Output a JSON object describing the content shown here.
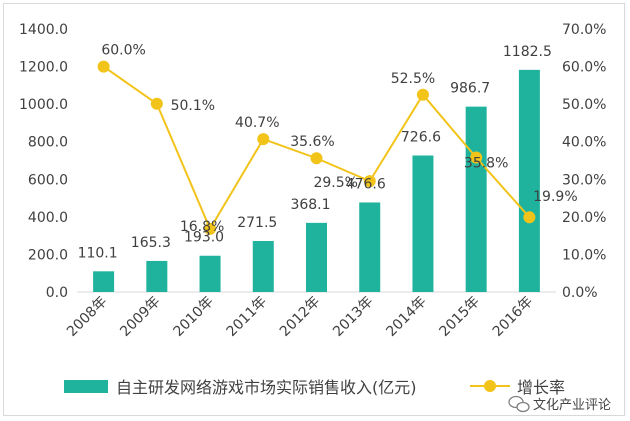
{
  "chart_data": {
    "type": "bar",
    "categories": [
      "2008年",
      "2009年",
      "2010年",
      "2011年",
      "2012年",
      "2013年",
      "2014年",
      "2015年",
      "2016年"
    ],
    "series": [
      {
        "name": "自主研发网络游戏市场实际销售收入(亿元)",
        "type": "bar",
        "axis": "left",
        "values": [
          110.1,
          165.3,
          193.0,
          271.5,
          368.1,
          476.6,
          726.6,
          986.7,
          1182.5
        ],
        "labels": [
          "110.1",
          "165.3",
          "193.0",
          "271.5",
          "368.1",
          "476.6",
          "726.6",
          "986.7",
          "1182.5"
        ]
      },
      {
        "name": "增长率",
        "type": "line",
        "axis": "right",
        "values": [
          60.0,
          50.1,
          16.8,
          40.7,
          35.6,
          29.5,
          52.5,
          35.8,
          19.9
        ],
        "labels": [
          "60.0%",
          "50.1%",
          "16.8%",
          "40.7%",
          "35.6%",
          "29.5%",
          "52.5%",
          "35.8%",
          "19.9%"
        ]
      }
    ],
    "y_left": {
      "range": [
        0,
        1400
      ],
      "ticks": [
        "0.0",
        "200.0",
        "400.0",
        "600.0",
        "800.0",
        "1000.0",
        "1200.0",
        "1400.0"
      ]
    },
    "y_right": {
      "range": [
        0,
        70
      ],
      "ticks": [
        "0.0%",
        "10.0%",
        "20.0%",
        "30.0%",
        "40.0%",
        "50.0%",
        "60.0%",
        "70.0%"
      ]
    },
    "grid": false,
    "legend_position": "bottom",
    "colors": {
      "bar": "#1fb39e",
      "line": "#f2c318",
      "text": "#404040",
      "axis": "#d9d9d9"
    }
  },
  "watermark": {
    "icon": "wechat-icon",
    "text": "文化产业评论"
  }
}
